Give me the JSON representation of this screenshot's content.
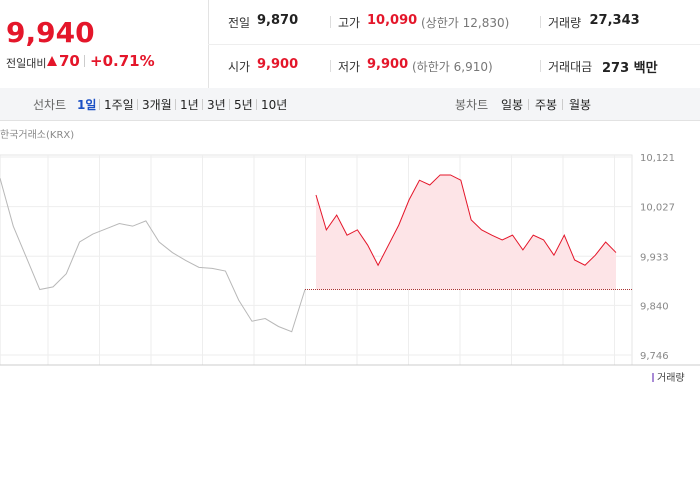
{
  "quote": {
    "price": "9,940",
    "change_label": "전일대비",
    "change": "70",
    "change_pct": "+0.71%"
  },
  "info": {
    "rows": [
      [
        {
          "label": "전일",
          "value": "9,870"
        },
        {
          "label": "고가",
          "value": "10,090",
          "note": "(상한가 12,830)"
        },
        {
          "label": "거래량",
          "value": "27,343"
        }
      ],
      [
        {
          "label": "시가",
          "value": "9,900"
        },
        {
          "label": "저가",
          "value": "9,900",
          "note": "(하한가 6,910)"
        },
        {
          "label": "거래대금",
          "value": "273 백만"
        }
      ]
    ]
  },
  "tabs": {
    "line_label": "선차트",
    "line_tabs": [
      "1일",
      "1주일",
      "3개월",
      "1년",
      "3년",
      "5년",
      "10년"
    ],
    "active": 0,
    "candle_label": "봉차트",
    "candle_tabs": [
      "일봉",
      "주봉",
      "월봉"
    ]
  },
  "chart_data": {
    "type": "line",
    "source": "한국거래소(KRX)",
    "ylim": [
      9746,
      10121
    ],
    "yticks": [
      {
        "value": 9746,
        "label": "9,746"
      },
      {
        "value": 9840,
        "label": "9,840"
      },
      {
        "value": 9933,
        "label": "9,933"
      },
      {
        "value": 10027,
        "label": "10,027"
      },
      {
        "value": 10121,
        "label": "10,121"
      }
    ],
    "reference_line": 9870,
    "series": [
      {
        "color": "#b8b8b8",
        "values": [
          10081,
          9990,
          9930,
          9870,
          9875,
          9900,
          9960,
          9975,
          9985,
          9995,
          9990,
          10000,
          9960,
          9940,
          9925,
          9912,
          9910,
          9905,
          9850,
          9810,
          9815,
          9800,
          9790,
          9870
        ]
      },
      {
        "color": "#e4162a",
        "fill": "#fde4e7",
        "values": [
          10049,
          9983,
          10011,
          9973,
          9983,
          9954,
          9916,
          9954,
          9992,
          10040,
          10077,
          10068,
          10087,
          10087,
          10077,
          10002,
          9983,
          9973,
          9964,
          9973,
          9945,
          9973,
          9964,
          9935,
          9973,
          9926,
          9916,
          9935,
          9960,
          9940
        ]
      }
    ],
    "volume_legend": "거래량",
    "volume_color": "#a98bd6"
  }
}
